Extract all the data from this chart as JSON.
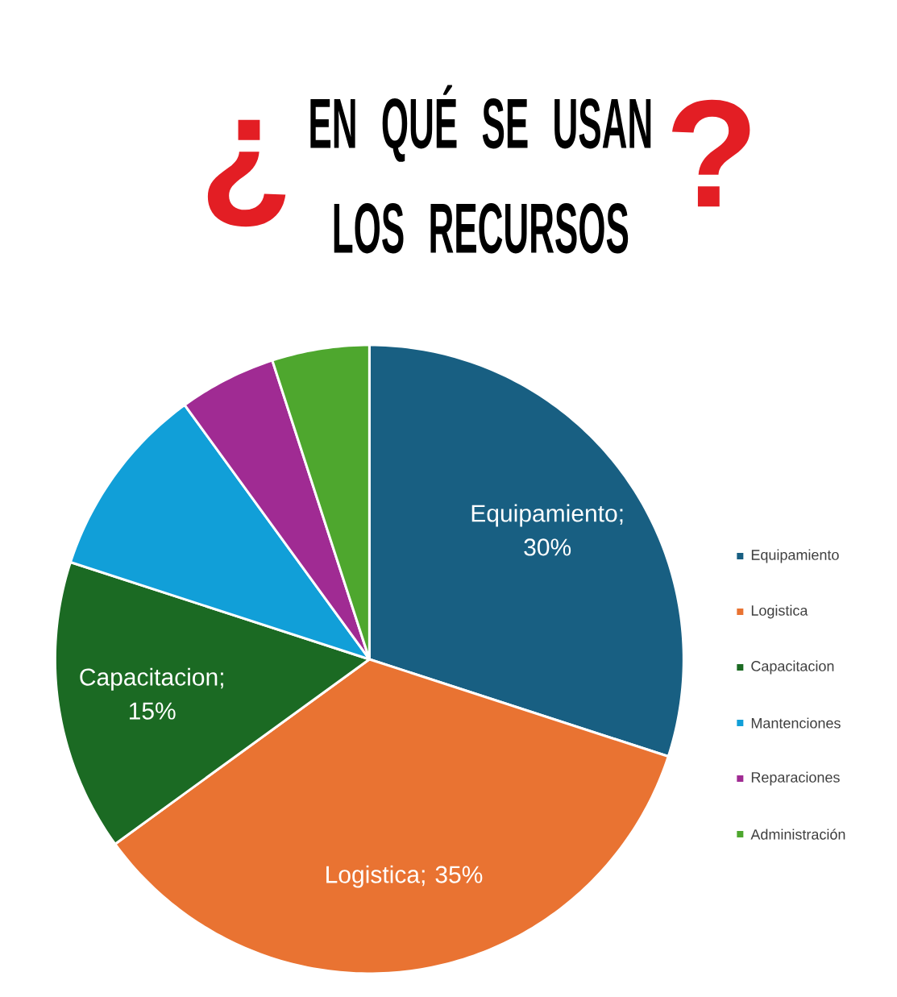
{
  "chart_data": {
    "type": "pie",
    "title": "EN QUÉ SE USAN LOS RECURSOS",
    "annotations": [
      "¿",
      "?"
    ],
    "categories": [
      "Equipamiento",
      "Logistica",
      "Capacitacion",
      "Mantenciones",
      "Reparaciones",
      "Administración"
    ],
    "values": [
      30,
      35,
      15,
      10,
      5,
      5
    ],
    "colors": [
      "#185f82",
      "#e97332",
      "#1b6a23",
      "#119fd8",
      "#a02b93",
      "#4ea72e"
    ],
    "value_labels": [
      "Equipamiento; 30%",
      "Logistica; 35%",
      "Capacitacion; 15%",
      null,
      null,
      null
    ],
    "legend": "right"
  }
}
